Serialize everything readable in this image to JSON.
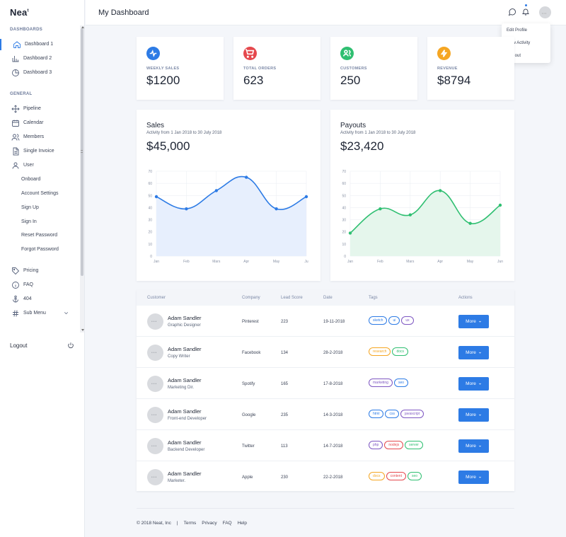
{
  "brand": {
    "name": "Nea",
    "suffix": "t"
  },
  "sidebar": {
    "sections": [
      {
        "label": "DASHBOARDS"
      },
      {
        "label": "GENERAL"
      }
    ],
    "dashboards": [
      {
        "label": "Dashboard 1",
        "icon": "home-icon",
        "active": true
      },
      {
        "label": "Dashboard 2",
        "icon": "bar-chart-icon"
      },
      {
        "label": "Dashboard 3",
        "icon": "pie-chart-icon"
      }
    ],
    "general": [
      {
        "label": "Pipeline",
        "icon": "move-icon"
      },
      {
        "label": "Calendar",
        "icon": "calendar-icon"
      },
      {
        "label": "Members",
        "icon": "users-icon"
      },
      {
        "label": "Single Invoice",
        "icon": "file-icon"
      },
      {
        "label": "User",
        "icon": "user-icon"
      }
    ],
    "user_sub": [
      "Onboard",
      "Account Settings",
      "Sign Up",
      "Sign In",
      "Reset Password",
      "Forgot Password"
    ],
    "extra": [
      {
        "label": "Pricing",
        "icon": "tag-icon"
      },
      {
        "label": "FAQ",
        "icon": "info-icon"
      },
      {
        "label": "404",
        "icon": "anchor-icon"
      },
      {
        "label": "Sub Menu",
        "icon": "hash-icon"
      }
    ],
    "logout": "Logout"
  },
  "header": {
    "title": "My Dashboard",
    "avatar": "•••"
  },
  "profile_menu": [
    "Edit Profile",
    "View Activity",
    "Log out"
  ],
  "stats": [
    {
      "label": "WEEKLY SALES",
      "value": "$1200",
      "color": "#2d7be5",
      "icon": "activity-icon"
    },
    {
      "label": "TOTAL ORDERS",
      "value": "623",
      "color": "#e5484d",
      "icon": "cart-icon"
    },
    {
      "label": "CUSTOMERS",
      "value": "250",
      "color": "#2fbf71",
      "icon": "users-icon"
    },
    {
      "label": "REVENUE",
      "value": "$8794",
      "color": "#f5a623",
      "icon": "zap-icon"
    }
  ],
  "charts": {
    "sales": {
      "title": "Sales",
      "subtitle": "Activity from 1 Jan 2018 to 30 July 2018",
      "total": "$45,000"
    },
    "payouts": {
      "title": "Payouts",
      "subtitle": "Activity from 1 Jan 2018 to 30 July 2018",
      "total": "$23,420"
    }
  },
  "chart_data": [
    {
      "type": "area",
      "title": "Sales",
      "categories": [
        "Jan",
        "Feb",
        "Mars",
        "Apr",
        "May",
        "Ju"
      ],
      "values": [
        49,
        39,
        54,
        65,
        39,
        49
      ],
      "ylim": [
        0,
        70
      ],
      "yticks": [
        0,
        10,
        20,
        30,
        40,
        50,
        60,
        70
      ],
      "color": "#2d7be5",
      "fill": "#e7effd",
      "grid": true
    },
    {
      "type": "area",
      "title": "Payouts",
      "categories": [
        "Jan",
        "Feb",
        "Mars",
        "Apr",
        "May",
        "Jun"
      ],
      "values": [
        19,
        39,
        34,
        54,
        27,
        42
      ],
      "ylim": [
        0,
        70
      ],
      "yticks": [
        0,
        10,
        20,
        30,
        40,
        50,
        60,
        70
      ],
      "color": "#2fbf71",
      "fill": "#e5f6ec",
      "grid": true
    }
  ],
  "table": {
    "headers": [
      "Customer",
      "Company",
      "Lead Score",
      "Date",
      "Tags",
      "Actions"
    ],
    "more_label": "More",
    "rows": [
      {
        "name": "Adam Sandler",
        "role": "Graphic Designer",
        "company": "Pinterest",
        "score": "223",
        "date": "19-11-2018",
        "tags": [
          {
            "t": "sketch",
            "c": "#2d7be5"
          },
          {
            "t": "ui",
            "c": "#2d7be5"
          },
          {
            "t": "ux",
            "c": "#7e57c2"
          }
        ]
      },
      {
        "name": "Adam Sandler",
        "role": "Copy Writer",
        "company": "Facebook",
        "score": "134",
        "date": "28-2-2018",
        "tags": [
          {
            "t": "research",
            "c": "#f5a623"
          },
          {
            "t": "docs",
            "c": "#2fbf71"
          }
        ]
      },
      {
        "name": "Adam Sandler",
        "role": "Marketing Dir.",
        "company": "Spotify",
        "score": "165",
        "date": "17-8-2018",
        "tags": [
          {
            "t": "marketing",
            "c": "#7e57c2"
          },
          {
            "t": "seo",
            "c": "#2d7be5"
          }
        ]
      },
      {
        "name": "Adam Sandler",
        "role": "Front-end Developer",
        "company": "Google",
        "score": "235",
        "date": "14-3-2018",
        "tags": [
          {
            "t": "html",
            "c": "#2d7be5"
          },
          {
            "t": "css",
            "c": "#2d7be5"
          },
          {
            "t": "javascript",
            "c": "#7e57c2"
          }
        ]
      },
      {
        "name": "Adam Sandler",
        "role": "Backend Developer",
        "company": "Twitter",
        "score": "113",
        "date": "14-7-2018",
        "tags": [
          {
            "t": "php",
            "c": "#7e57c2"
          },
          {
            "t": "nodejs",
            "c": "#e5484d"
          },
          {
            "t": "server",
            "c": "#2fbf71"
          }
        ]
      },
      {
        "name": "Adam Sandler",
        "role": "Marketer.",
        "company": "Apple",
        "score": "230",
        "date": "22-2-2018",
        "tags": [
          {
            "t": "docs",
            "c": "#f5a623"
          },
          {
            "t": "content",
            "c": "#e5484d"
          },
          {
            "t": "seo",
            "c": "#2fbf71"
          }
        ]
      }
    ]
  },
  "footer": {
    "copyright": "© 2018 Neat, Inc",
    "sep": "|",
    "links": [
      "Terms",
      "Privacy",
      "FAQ",
      "Help"
    ]
  }
}
